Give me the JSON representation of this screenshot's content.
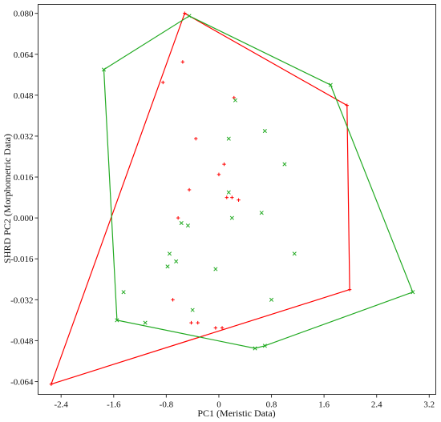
{
  "chart_data": {
    "type": "scatter",
    "title": "",
    "xlabel": "PC1 (Meristic Data)",
    "ylabel": "SHRD PC2 (Morphometric Data)",
    "xlim": [
      -2.75,
      3.3
    ],
    "ylim": [
      -0.069,
      0.0835
    ],
    "x_ticks": [
      -2.4,
      -1.6,
      -0.8,
      0.0,
      0.8,
      1.6,
      2.4,
      3.2
    ],
    "x_tick_labels": [
      "-2.4",
      "-1.6",
      "-0.8",
      "0",
      "0.8",
      "1.6",
      "2.4",
      "3.2"
    ],
    "y_ticks": [
      0.08,
      0.064,
      0.048,
      0.032,
      0.016,
      0.0,
      -0.016,
      -0.032,
      -0.048,
      -0.064
    ],
    "y_tick_labels": [
      "0.080",
      "0.064",
      "0.048",
      "0.032",
      "0.016",
      "0.000",
      "-0.016",
      "-0.032",
      "-0.048",
      "-0.064"
    ],
    "grid": false,
    "series": [
      {
        "color": "#ff0000",
        "marker": "plus",
        "hull": [
          [
            -0.52,
            0.08
          ],
          [
            1.95,
            0.044
          ],
          [
            1.99,
            -0.028
          ],
          [
            -2.55,
            -0.065
          ]
        ],
        "points": [
          [
            -0.52,
            0.08
          ],
          [
            -0.55,
            0.061
          ],
          [
            -0.85,
            0.053
          ],
          [
            0.23,
            0.047
          ],
          [
            -0.35,
            0.031
          ],
          [
            0.08,
            0.021
          ],
          [
            0.0,
            0.017
          ],
          [
            -0.45,
            0.011
          ],
          [
            0.12,
            0.008
          ],
          [
            0.2,
            0.008
          ],
          [
            0.3,
            0.007
          ],
          [
            -0.62,
            0.0
          ],
          [
            -0.7,
            -0.032
          ],
          [
            -0.42,
            -0.041
          ],
          [
            -0.32,
            -0.041
          ],
          [
            -0.05,
            -0.043
          ],
          [
            0.05,
            -0.043
          ],
          [
            1.95,
            0.044
          ],
          [
            1.99,
            -0.028
          ],
          [
            -2.55,
            -0.065
          ]
        ]
      },
      {
        "color": "#22aa22",
        "marker": "x",
        "hull": [
          [
            -1.75,
            0.058
          ],
          [
            -0.45,
            0.079
          ],
          [
            1.7,
            0.052
          ],
          [
            2.95,
            -0.029
          ],
          [
            0.7,
            -0.05
          ],
          [
            0.55,
            -0.051
          ],
          [
            -1.55,
            -0.04
          ]
        ],
        "points": [
          [
            -1.75,
            0.058
          ],
          [
            -0.45,
            0.079
          ],
          [
            1.7,
            0.052
          ],
          [
            2.95,
            -0.029
          ],
          [
            0.7,
            -0.05
          ],
          [
            0.55,
            -0.051
          ],
          [
            -1.55,
            -0.04
          ],
          [
            0.25,
            0.046
          ],
          [
            0.7,
            0.034
          ],
          [
            0.15,
            0.031
          ],
          [
            1.0,
            0.021
          ],
          [
            0.15,
            0.01
          ],
          [
            0.65,
            0.002
          ],
          [
            0.2,
            0.0
          ],
          [
            -0.57,
            -0.002
          ],
          [
            -0.47,
            -0.003
          ],
          [
            1.15,
            -0.014
          ],
          [
            -0.75,
            -0.014
          ],
          [
            -0.65,
            -0.017
          ],
          [
            -0.78,
            -0.019
          ],
          [
            -0.05,
            -0.02
          ],
          [
            -1.45,
            -0.029
          ],
          [
            0.8,
            -0.032
          ],
          [
            -0.4,
            -0.036
          ],
          [
            -1.12,
            -0.041
          ]
        ]
      }
    ]
  }
}
